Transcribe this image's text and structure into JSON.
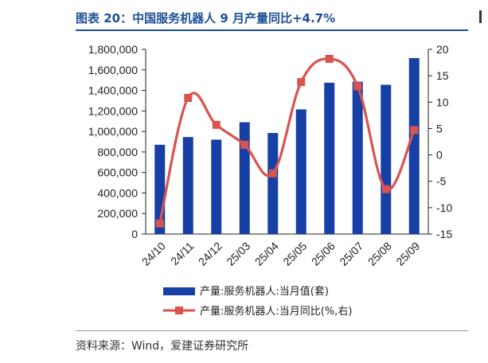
{
  "header": {
    "title": "图表 20：中国服务机器人 9 月产量同比+4.7%"
  },
  "footer": {
    "source": "资料来源：Wind，爱建证券研究所"
  },
  "colors": {
    "title": "#1d4f96",
    "bar": "#1740a6",
    "line": "#d9534f"
  },
  "chart_data": {
    "type": "bar+line",
    "categories": [
      "24/10",
      "24/11",
      "24/12",
      "25/03",
      "25/04",
      "25/05",
      "25/06",
      "25/07",
      "25/08",
      "25/09"
    ],
    "series": [
      {
        "name": "产量:服务机器人:当月值(套)",
        "type": "bar",
        "axis": "left",
        "values": [
          870000,
          945000,
          920000,
          1090000,
          985000,
          1215000,
          1475000,
          1485000,
          1455000,
          1715000
        ]
      },
      {
        "name": "产量:服务机器人:当月同比(%,右)",
        "type": "line",
        "axis": "right",
        "values": [
          -13,
          10.8,
          5.7,
          1.9,
          -3.5,
          13.8,
          18.2,
          13,
          -6.5,
          4.7
        ]
      }
    ],
    "left_axis": {
      "min": 0,
      "max": 1800000,
      "ticks": [
        "0",
        "200,000",
        "400,000",
        "600,000",
        "800,000",
        "1,000,000",
        "1,200,000",
        "1,400,000",
        "1,600,000",
        "1,800,000"
      ]
    },
    "right_axis": {
      "min": -15,
      "max": 20,
      "ticks": [
        "-15",
        "-10",
        "-5",
        "0",
        "5",
        "10",
        "15",
        "20"
      ]
    },
    "legend_position": "bottom",
    "grid": false
  }
}
